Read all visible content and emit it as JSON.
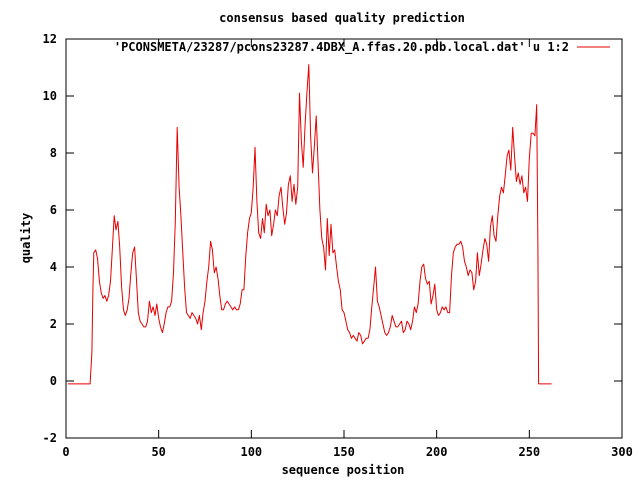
{
  "chart_data": {
    "type": "line",
    "title": "consensus based quality prediction",
    "xlabel": "sequence position",
    "ylabel": "quality",
    "xlim": [
      0,
      300
    ],
    "ylim": [
      -2,
      12
    ],
    "xticks": [
      0,
      50,
      100,
      150,
      200,
      250,
      300
    ],
    "yticks": [
      -2,
      0,
      2,
      4,
      6,
      8,
      10,
      12
    ],
    "grid": false,
    "legend_position": "top-right",
    "series": [
      {
        "name": "'PCONSMETA/23287/pcons23287.4DBX_A.ffas.20.pdb.local.dat' u 1:2",
        "color": "#e60000",
        "points": [
          [
            1,
            -0.1
          ],
          [
            12,
            -0.1
          ],
          [
            13,
            -0.1
          ],
          [
            14,
            1.0
          ],
          [
            14.5,
            3.2
          ],
          [
            15,
            4.5
          ],
          [
            16,
            4.6
          ],
          [
            17,
            4.3
          ],
          [
            18,
            3.5
          ],
          [
            19,
            3.1
          ],
          [
            20,
            2.9
          ],
          [
            21,
            3.0
          ],
          [
            22,
            2.8
          ],
          [
            23,
            3.0
          ],
          [
            24,
            3.5
          ],
          [
            25,
            4.6
          ],
          [
            26,
            5.8
          ],
          [
            27,
            5.3
          ],
          [
            28,
            5.6
          ],
          [
            29,
            4.7
          ],
          [
            30,
            3.3
          ],
          [
            31,
            2.5
          ],
          [
            32,
            2.3
          ],
          [
            33,
            2.5
          ],
          [
            34,
            2.9
          ],
          [
            35,
            3.8
          ],
          [
            36,
            4.5
          ],
          [
            37,
            4.7
          ],
          [
            38,
            3.6
          ],
          [
            39,
            2.4
          ],
          [
            40,
            2.1
          ],
          [
            41,
            2.0
          ],
          [
            42,
            1.9
          ],
          [
            43,
            1.9
          ],
          [
            44,
            2.1
          ],
          [
            45,
            2.8
          ],
          [
            46,
            2.4
          ],
          [
            47,
            2.6
          ],
          [
            48,
            2.3
          ],
          [
            49,
            2.7
          ],
          [
            50,
            2.2
          ],
          [
            51,
            1.9
          ],
          [
            52,
            1.7
          ],
          [
            53,
            2.0
          ],
          [
            54,
            2.4
          ],
          [
            55,
            2.6
          ],
          [
            56,
            2.6
          ],
          [
            57,
            2.8
          ],
          [
            58,
            3.8
          ],
          [
            59,
            5.6
          ],
          [
            60,
            8.9
          ],
          [
            61,
            6.8
          ],
          [
            62,
            5.8
          ],
          [
            63,
            4.5
          ],
          [
            64,
            3.3
          ],
          [
            65,
            2.4
          ],
          [
            66,
            2.3
          ],
          [
            67,
            2.2
          ],
          [
            68,
            2.4
          ],
          [
            69,
            2.3
          ],
          [
            70,
            2.2
          ],
          [
            71,
            2.0
          ],
          [
            72,
            2.3
          ],
          [
            73,
            1.8
          ],
          [
            74,
            2.4
          ],
          [
            75,
            2.8
          ],
          [
            76,
            3.5
          ],
          [
            77,
            4.0
          ],
          [
            78,
            4.9
          ],
          [
            79,
            4.6
          ],
          [
            80,
            3.8
          ],
          [
            81,
            4.0
          ],
          [
            82,
            3.6
          ],
          [
            83,
            3.0
          ],
          [
            84,
            2.5
          ],
          [
            85,
            2.5
          ],
          [
            86,
            2.7
          ],
          [
            87,
            2.8
          ],
          [
            88,
            2.7
          ],
          [
            89,
            2.6
          ],
          [
            90,
            2.5
          ],
          [
            91,
            2.6
          ],
          [
            92,
            2.5
          ],
          [
            93,
            2.5
          ],
          [
            94,
            2.7
          ],
          [
            95,
            3.2
          ],
          [
            96,
            3.2
          ],
          [
            97,
            4.4
          ],
          [
            98,
            5.2
          ],
          [
            99,
            5.7
          ],
          [
            100,
            5.9
          ],
          [
            101,
            6.8
          ],
          [
            102,
            8.2
          ],
          [
            103,
            6.3
          ],
          [
            104,
            5.2
          ],
          [
            105,
            5.0
          ],
          [
            106,
            5.7
          ],
          [
            107,
            5.2
          ],
          [
            108,
            6.2
          ],
          [
            109,
            5.8
          ],
          [
            110,
            6.0
          ],
          [
            111,
            5.1
          ],
          [
            112,
            5.5
          ],
          [
            113,
            6.0
          ],
          [
            114,
            5.8
          ],
          [
            115,
            6.5
          ],
          [
            116,
            6.8
          ],
          [
            117,
            6.1
          ],
          [
            118,
            5.5
          ],
          [
            119,
            5.9
          ],
          [
            120,
            6.9
          ],
          [
            121,
            7.2
          ],
          [
            122,
            6.3
          ],
          [
            123,
            6.9
          ],
          [
            124,
            6.2
          ],
          [
            125,
            6.8
          ],
          [
            126,
            10.1
          ],
          [
            127,
            8.4
          ],
          [
            128,
            7.5
          ],
          [
            129,
            9.0
          ],
          [
            130,
            10.1
          ],
          [
            131,
            11.1
          ],
          [
            132,
            8.6
          ],
          [
            133,
            7.3
          ],
          [
            134,
            8.2
          ],
          [
            135,
            9.3
          ],
          [
            136,
            7.6
          ],
          [
            137,
            6.0
          ],
          [
            138,
            5.0
          ],
          [
            139,
            4.7
          ],
          [
            140,
            3.9
          ],
          [
            141,
            5.7
          ],
          [
            142,
            4.4
          ],
          [
            143,
            5.5
          ],
          [
            144,
            4.5
          ],
          [
            145,
            4.6
          ],
          [
            146,
            4.0
          ],
          [
            147,
            3.5
          ],
          [
            148,
            3.2
          ],
          [
            149,
            2.5
          ],
          [
            150,
            2.4
          ],
          [
            151,
            2.1
          ],
          [
            152,
            1.8
          ],
          [
            153,
            1.7
          ],
          [
            154,
            1.5
          ],
          [
            155,
            1.6
          ],
          [
            156,
            1.5
          ],
          [
            157,
            1.4
          ],
          [
            158,
            1.7
          ],
          [
            159,
            1.6
          ],
          [
            160,
            1.3
          ],
          [
            161,
            1.4
          ],
          [
            162,
            1.5
          ],
          [
            163,
            1.5
          ],
          [
            164,
            1.8
          ],
          [
            165,
            2.6
          ],
          [
            166,
            3.3
          ],
          [
            167,
            4.0
          ],
          [
            168,
            2.8
          ],
          [
            169,
            2.6
          ],
          [
            170,
            2.3
          ],
          [
            171,
            2.0
          ],
          [
            172,
            1.7
          ],
          [
            173,
            1.6
          ],
          [
            174,
            1.7
          ],
          [
            175,
            1.9
          ],
          [
            176,
            2.3
          ],
          [
            177,
            2.1
          ],
          [
            178,
            1.9
          ],
          [
            179,
            1.9
          ],
          [
            180,
            2.0
          ],
          [
            181,
            2.1
          ],
          [
            182,
            1.7
          ],
          [
            183,
            1.8
          ],
          [
            184,
            2.1
          ],
          [
            185,
            2.0
          ],
          [
            186,
            1.8
          ],
          [
            187,
            2.1
          ],
          [
            188,
            2.6
          ],
          [
            189,
            2.4
          ],
          [
            190,
            2.7
          ],
          [
            191,
            3.5
          ],
          [
            192,
            4.0
          ],
          [
            193,
            4.1
          ],
          [
            194,
            3.6
          ],
          [
            195,
            3.4
          ],
          [
            196,
            3.5
          ],
          [
            197,
            2.7
          ],
          [
            198,
            3.0
          ],
          [
            199,
            3.4
          ],
          [
            200,
            2.5
          ],
          [
            201,
            2.3
          ],
          [
            202,
            2.4
          ],
          [
            203,
            2.6
          ],
          [
            204,
            2.5
          ],
          [
            205,
            2.6
          ],
          [
            206,
            2.4
          ],
          [
            207,
            2.4
          ],
          [
            208,
            3.7
          ],
          [
            209,
            4.5
          ],
          [
            210,
            4.7
          ],
          [
            211,
            4.8
          ],
          [
            212,
            4.8
          ],
          [
            213,
            4.9
          ],
          [
            214,
            4.7
          ],
          [
            215,
            4.2
          ],
          [
            216,
            4.0
          ],
          [
            217,
            3.7
          ],
          [
            218,
            3.9
          ],
          [
            219,
            3.8
          ],
          [
            220,
            3.2
          ],
          [
            221,
            3.5
          ],
          [
            222,
            4.5
          ],
          [
            223,
            3.7
          ],
          [
            224,
            4.1
          ],
          [
            225,
            4.6
          ],
          [
            226,
            5.0
          ],
          [
            227,
            4.8
          ],
          [
            228,
            4.2
          ],
          [
            229,
            5.4
          ],
          [
            230,
            5.8
          ],
          [
            231,
            5.1
          ],
          [
            232,
            4.9
          ],
          [
            233,
            5.8
          ],
          [
            234,
            6.5
          ],
          [
            235,
            6.8
          ],
          [
            236,
            6.6
          ],
          [
            237,
            7.2
          ],
          [
            238,
            7.9
          ],
          [
            239,
            8.1
          ],
          [
            240,
            7.4
          ],
          [
            241,
            8.9
          ],
          [
            242,
            7.9
          ],
          [
            243,
            7.0
          ],
          [
            244,
            7.3
          ],
          [
            245,
            6.9
          ],
          [
            246,
            7.2
          ],
          [
            247,
            6.6
          ],
          [
            248,
            6.8
          ],
          [
            249,
            6.3
          ],
          [
            250,
            7.8
          ],
          [
            251,
            8.7
          ],
          [
            252,
            8.7
          ],
          [
            253,
            8.6
          ],
          [
            254,
            9.7
          ],
          [
            254.6,
            4.7
          ],
          [
            255,
            -0.1
          ],
          [
            262,
            -0.1
          ]
        ]
      }
    ]
  }
}
